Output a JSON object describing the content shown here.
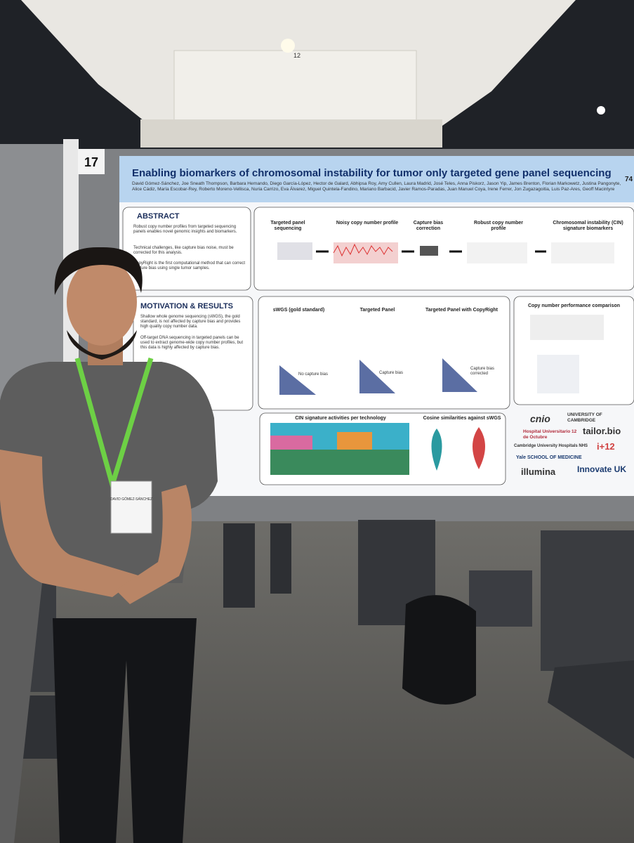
{
  "ceiling_sign": "12",
  "board_number": "17",
  "poster": {
    "title": "Enabling biomarkers of chromosomal instability for tumor only targeted gene panel sequencing",
    "number": "74",
    "authors": "David Gómez-Sánchez, Joe Sneath Thompson, Barbara Hernando, Diego García-López, Hector de Galard, Abhipsa Roy, Amy Cullen, Laura Madrid, José Teles, Anna Piskorz, Jason Yip, James Brenton, Florian Markowetz, Justina Pangonyte, Alice Cádiz, María Escobar-Rey, Roberto Moreno-Vellisca, Nuria Carrizo, Eva Álvarez, Miguel Quintela-Fandino, Mariano Barbacid, Javier Ramos-Paradas, Juan Manuel Coya, Irene Ferrer, Jon Zugazagoitia, Luis Paz-Ares, Geoff Macintyre",
    "abstract": {
      "heading": "ABSTRACT",
      "bullets": [
        "Robust copy number profiles from targeted sequencing panels enables novel genomic insights and biomarkers.",
        "Technical challenges, like capture bias noise, must be corrected for this analysis.",
        "CopyRight is the first computational method that can correct capture bias using single tumor samples."
      ]
    },
    "pipeline": [
      "Targeted panel sequencing",
      "Noisy copy number profile",
      "Capture bias correction",
      "Robust copy number profile",
      "Chromosomal instability (CIN) signature biomarkers"
    ],
    "motivation": {
      "heading": "MOTIVATION & RESULTS",
      "bullets": [
        "Shallow whole genome sequencing (sWGS), the gold standard, is not affected by capture bias and provides high quality copy number data.",
        "Off-target DNA sequencing in targeted panels can be used to extract genome-wide copy number profiles, but this data is highly affected by capture bias."
      ]
    },
    "panels": [
      "sWGS (gold standard)",
      "Targeted Panel",
      "Targeted Panel with CopyRight",
      "Copy number performance comparison"
    ],
    "panel_notes": [
      "No capture bias",
      "Capture bias",
      "Capture bias corrected"
    ],
    "bottom_charts": [
      "CIN signature activities per technology",
      "Cosine similarities against sWGS"
    ],
    "logos": [
      "cnio",
      "UNIVERSITY OF CAMBRIDGE",
      "Hospital Universitario 12 de Octubre",
      "tailor.bio",
      "Cambridge University Hospitals NHS",
      "i+12",
      "Yale SCHOOL OF MEDICINE",
      "illumina",
      "Innovate UK"
    ]
  },
  "badge": "DAVID GÓMEZ-SÁNCHEZ"
}
